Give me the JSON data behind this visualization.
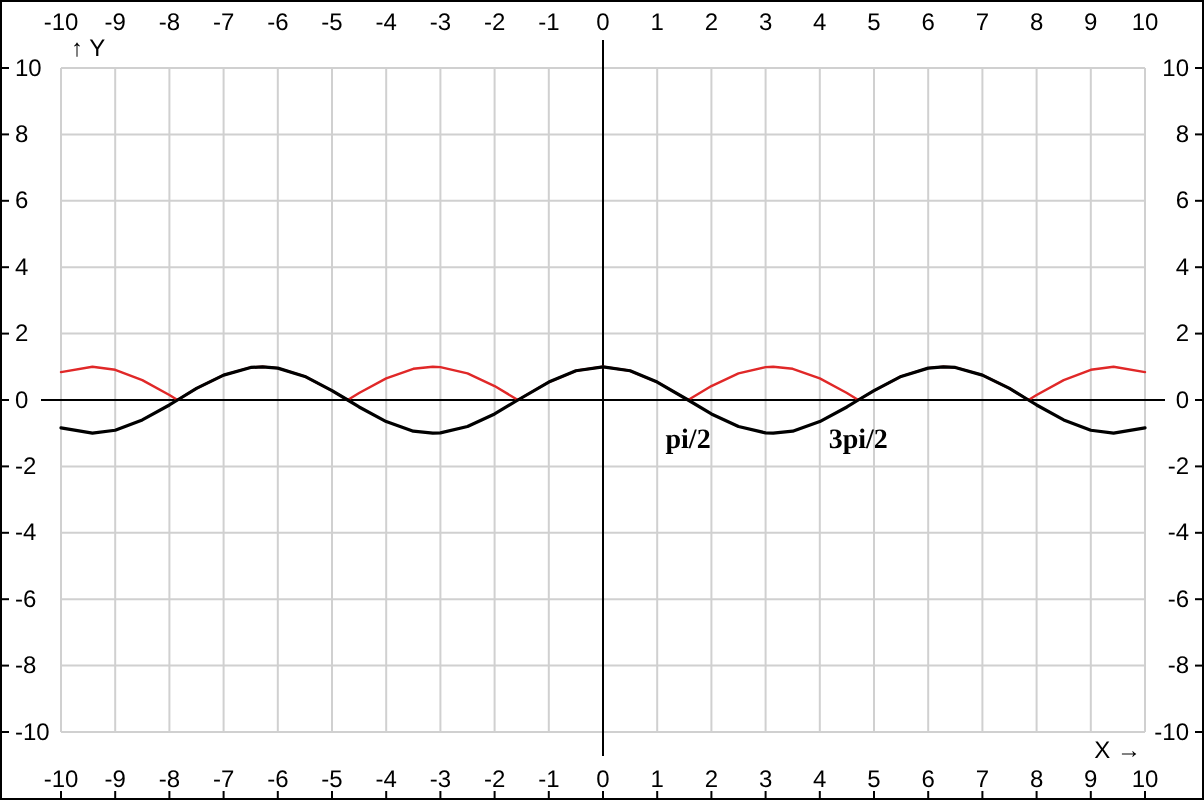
{
  "chart_data": {
    "type": "line",
    "xlabel": "X →",
    "ylabel": "↑ Y",
    "xlim": [
      -10,
      10
    ],
    "xticks": [
      -10,
      -9,
      -8,
      -7,
      -6,
      -5,
      -4,
      -3,
      -2,
      -1,
      0,
      1,
      2,
      3,
      4,
      5,
      6,
      7,
      8,
      9,
      10
    ],
    "x2lim": [
      -10,
      10
    ],
    "x2ticks": [
      -10,
      -9,
      -8,
      -7,
      -6,
      -5,
      -4,
      -3,
      -2,
      -1,
      0,
      1,
      2,
      3,
      4,
      5,
      6,
      7,
      8,
      9,
      10
    ],
    "ylim": [
      -10,
      10
    ],
    "yticks": [
      -10,
      -8,
      -6,
      -4,
      -2,
      0,
      2,
      4,
      6,
      8,
      10
    ],
    "y2lim": [
      -10,
      10
    ],
    "y2ticks": [
      -10,
      -8,
      -6,
      -4,
      -2,
      0,
      2,
      4,
      6,
      8,
      10
    ],
    "grid": true,
    "series": [
      {
        "color": "#e02828",
        "x": [
          -10,
          -9.42,
          -9,
          -8.5,
          -8,
          -7.85,
          -7.5,
          -7,
          -6.5,
          -6.28,
          -6,
          -5.5,
          -5,
          -4.71,
          -4.5,
          -4,
          -3.5,
          -3.14,
          -3,
          -2.5,
          -2,
          -1.57,
          -1,
          -0.5,
          0,
          0.5,
          1,
          1.57,
          2,
          2.5,
          3,
          3.14,
          3.5,
          4,
          4.5,
          4.71,
          5,
          5.5,
          6,
          6.28,
          6.5,
          7,
          7.5,
          7.85,
          8,
          8.5,
          9,
          9.42,
          10
        ],
        "values": [
          0.84,
          1,
          0.91,
          0.6,
          0.15,
          0,
          0.35,
          0.75,
          0.98,
          1,
          0.96,
          0.71,
          0.28,
          0,
          0.21,
          0.65,
          0.94,
          1,
          0.99,
          0.8,
          0.42,
          0,
          0.54,
          0.88,
          1,
          0.88,
          0.54,
          0,
          0.42,
          0.8,
          0.99,
          1,
          0.94,
          0.65,
          0.21,
          0,
          0.28,
          0.71,
          0.96,
          1,
          0.98,
          0.75,
          0.35,
          0,
          0.15,
          0.6,
          0.91,
          1,
          0.84
        ]
      },
      {
        "color": "#000000",
        "x": [
          -10,
          -9.42,
          -9,
          -8.5,
          -8,
          -7.85,
          -7.5,
          -7,
          -6.5,
          -6.28,
          -6,
          -5.5,
          -5,
          -4.71,
          -4.5,
          -4,
          -3.5,
          -3.14,
          -3,
          -2.5,
          -2,
          -1.57,
          -1,
          -0.5,
          0,
          0.5,
          1,
          1.57,
          2,
          2.5,
          3,
          3.14,
          3.5,
          4,
          4.5,
          4.71,
          5,
          5.5,
          6,
          6.28,
          6.5,
          7,
          7.5,
          7.85,
          8,
          8.5,
          9,
          9.42,
          10
        ],
        "values": [
          -0.84,
          -1,
          -0.91,
          -0.6,
          -0.15,
          0,
          0.35,
          0.75,
          0.98,
          1,
          0.96,
          0.71,
          0.28,
          0,
          -0.21,
          -0.65,
          -0.94,
          -1,
          -0.99,
          -0.8,
          -0.42,
          0,
          0.54,
          0.88,
          1,
          0.88,
          0.54,
          0,
          -0.42,
          -0.8,
          -0.99,
          -1,
          -0.94,
          -0.65,
          -0.21,
          0,
          0.28,
          0.71,
          0.96,
          1,
          0.98,
          0.75,
          0.35,
          0,
          -0.15,
          -0.6,
          -0.91,
          -1,
          -0.84
        ]
      }
    ],
    "annotations": [
      {
        "text": "pi/2",
        "x": 1.57,
        "y": 0
      },
      {
        "text": "3pi/2",
        "x": 4.71,
        "y": 0
      }
    ]
  }
}
